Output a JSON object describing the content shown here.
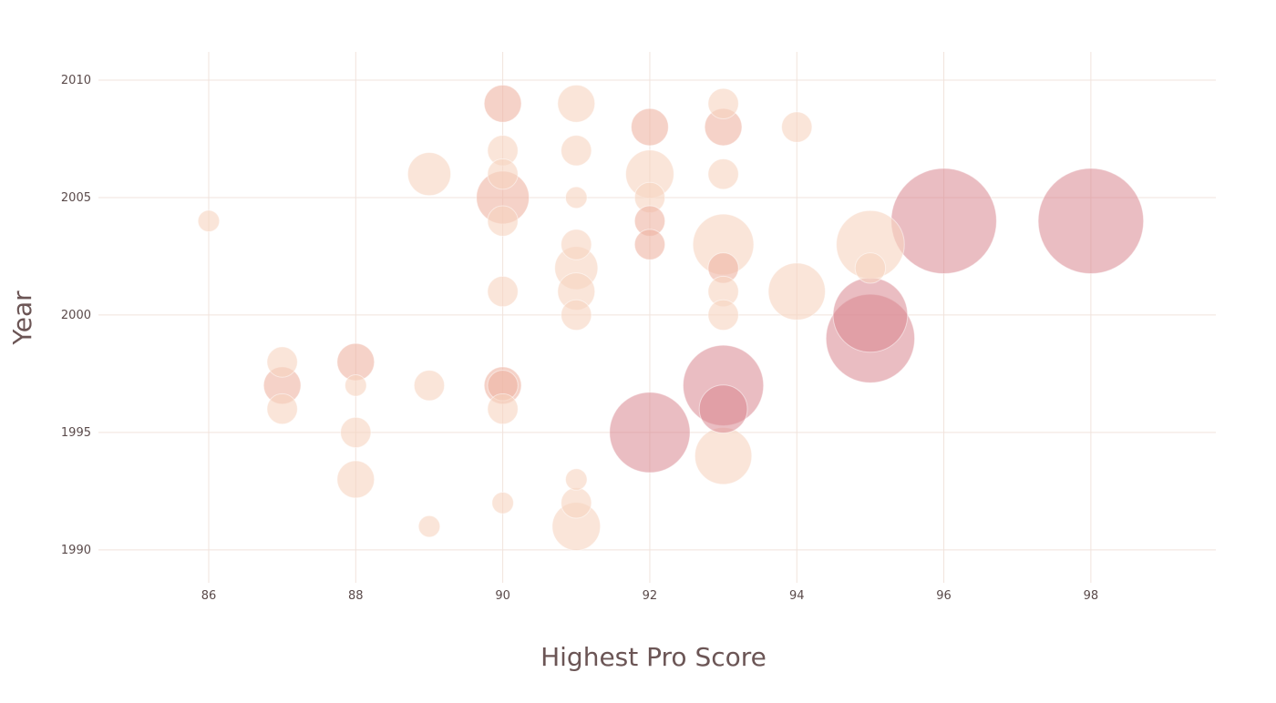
{
  "chart_data": {
    "type": "scatter",
    "subtype": "bubble",
    "title": "",
    "xlabel": "Highest Pro Score",
    "ylabel": "Year",
    "xlim": [
      84.5,
      99.7
    ],
    "ylim": [
      1988.6,
      2011.2
    ],
    "x_ticks": [
      86,
      88,
      90,
      92,
      94,
      96,
      98
    ],
    "y_ticks": [
      1990,
      1995,
      2000,
      2005,
      2010
    ],
    "grid": true,
    "colors": {
      "light": "#f6d3c0",
      "mid": "#efb4a4",
      "dark": "#d98790",
      "grid": "#f1e3dc",
      "text": "#5a4a4a"
    },
    "points": [
      {
        "x": 86,
        "y": 2004,
        "size": 1,
        "tone": "light"
      },
      {
        "x": 87,
        "y": 1998,
        "size": 2,
        "tone": "light"
      },
      {
        "x": 87,
        "y": 1997,
        "size": 3,
        "tone": "mid"
      },
      {
        "x": 87,
        "y": 1996,
        "size": 2,
        "tone": "light"
      },
      {
        "x": 88,
        "y": 1998,
        "size": 3,
        "tone": "mid"
      },
      {
        "x": 88,
        "y": 1997,
        "size": 1,
        "tone": "light"
      },
      {
        "x": 88,
        "y": 1995,
        "size": 2,
        "tone": "light"
      },
      {
        "x": 88,
        "y": 1993,
        "size": 3,
        "tone": "light"
      },
      {
        "x": 89,
        "y": 2006,
        "size": 4,
        "tone": "light"
      },
      {
        "x": 89,
        "y": 1997,
        "size": 2,
        "tone": "light"
      },
      {
        "x": 89,
        "y": 1991,
        "size": 1,
        "tone": "light"
      },
      {
        "x": 90,
        "y": 2009,
        "size": 3,
        "tone": "mid"
      },
      {
        "x": 90,
        "y": 2007,
        "size": 2,
        "tone": "light"
      },
      {
        "x": 90,
        "y": 2006,
        "size": 2,
        "tone": "light"
      },
      {
        "x": 90,
        "y": 2005,
        "size": 6,
        "tone": "mid"
      },
      {
        "x": 90,
        "y": 2004,
        "size": 2,
        "tone": "light"
      },
      {
        "x": 90,
        "y": 2001,
        "size": 2,
        "tone": "light"
      },
      {
        "x": 90,
        "y": 1997,
        "size": 3,
        "tone": "mid"
      },
      {
        "x": 90,
        "y": 1997,
        "size": 2,
        "tone": "mid"
      },
      {
        "x": 90,
        "y": 1996,
        "size": 2,
        "tone": "light"
      },
      {
        "x": 90,
        "y": 1992,
        "size": 1,
        "tone": "light"
      },
      {
        "x": 91,
        "y": 2009,
        "size": 3,
        "tone": "light"
      },
      {
        "x": 91,
        "y": 2007,
        "size": 2,
        "tone": "light"
      },
      {
        "x": 91,
        "y": 2005,
        "size": 1,
        "tone": "light"
      },
      {
        "x": 91,
        "y": 2003,
        "size": 2,
        "tone": "light"
      },
      {
        "x": 91,
        "y": 2002,
        "size": 4,
        "tone": "light"
      },
      {
        "x": 91,
        "y": 2001,
        "size": 3,
        "tone": "light"
      },
      {
        "x": 91,
        "y": 2000,
        "size": 2,
        "tone": "light"
      },
      {
        "x": 91,
        "y": 1993,
        "size": 1,
        "tone": "light"
      },
      {
        "x": 91,
        "y": 1992,
        "size": 2,
        "tone": "light"
      },
      {
        "x": 91,
        "y": 1991,
        "size": 5,
        "tone": "light"
      },
      {
        "x": 92,
        "y": 2008,
        "size": 3,
        "tone": "mid"
      },
      {
        "x": 92,
        "y": 2006,
        "size": 5,
        "tone": "light"
      },
      {
        "x": 92,
        "y": 2005,
        "size": 2,
        "tone": "light"
      },
      {
        "x": 92,
        "y": 2004,
        "size": 2,
        "tone": "mid"
      },
      {
        "x": 92,
        "y": 2003,
        "size": 2,
        "tone": "mid"
      },
      {
        "x": 92,
        "y": 1995,
        "size": 14,
        "tone": "dark"
      },
      {
        "x": 93,
        "y": 2009,
        "size": 2,
        "tone": "light"
      },
      {
        "x": 93,
        "y": 2008,
        "size": 3,
        "tone": "mid"
      },
      {
        "x": 93,
        "y": 2006,
        "size": 2,
        "tone": "light"
      },
      {
        "x": 93,
        "y": 2003,
        "size": 8,
        "tone": "light"
      },
      {
        "x": 93,
        "y": 2002,
        "size": 2,
        "tone": "mid"
      },
      {
        "x": 93,
        "y": 2001,
        "size": 2,
        "tone": "light"
      },
      {
        "x": 93,
        "y": 2000,
        "size": 2,
        "tone": "light"
      },
      {
        "x": 93,
        "y": 1997,
        "size": 14,
        "tone": "dark"
      },
      {
        "x": 93,
        "y": 1996,
        "size": 5,
        "tone": "dark"
      },
      {
        "x": 93,
        "y": 1994,
        "size": 7,
        "tone": "light"
      },
      {
        "x": 94,
        "y": 2008,
        "size": 2,
        "tone": "light"
      },
      {
        "x": 94,
        "y": 2001,
        "size": 7,
        "tone": "light"
      },
      {
        "x": 95,
        "y": 2003,
        "size": 10,
        "tone": "light"
      },
      {
        "x": 95,
        "y": 2002,
        "size": 2,
        "tone": "light"
      },
      {
        "x": 95,
        "y": 2000,
        "size": 12,
        "tone": "dark"
      },
      {
        "x": 95,
        "y": 1999,
        "size": 17,
        "tone": "dark"
      },
      {
        "x": 96,
        "y": 2004,
        "size": 24,
        "tone": "dark"
      },
      {
        "x": 98,
        "y": 2004,
        "size": 24,
        "tone": "dark"
      }
    ]
  }
}
